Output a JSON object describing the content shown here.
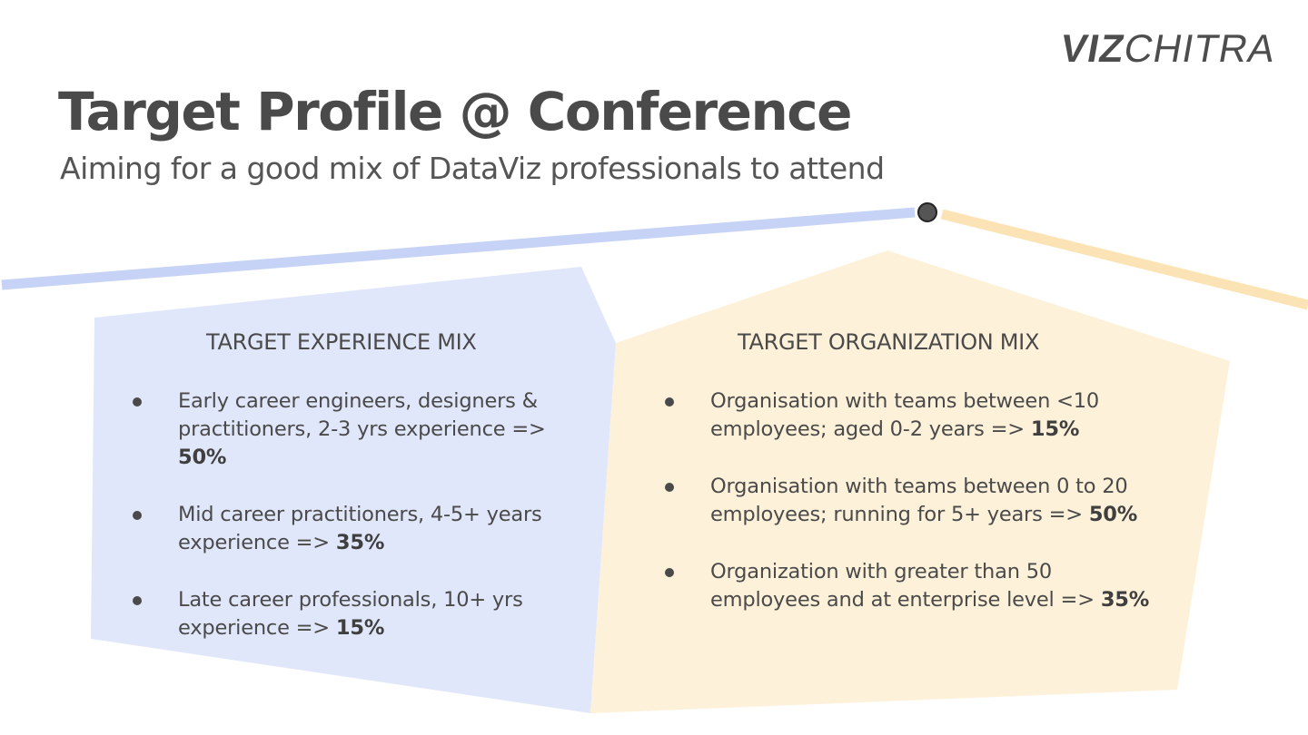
{
  "brand": {
    "logo_bold": "VIZ",
    "logo_rest": "CHITRA"
  },
  "header": {
    "title": "Target Profile @ Conference",
    "subtitle": "Aiming for a good mix of DataViz professionals to attend"
  },
  "colors": {
    "experience_panel": "#e1e7fa",
    "experience_line": "#c7d3f6",
    "organization_panel": "#fdf1d9",
    "organization_line": "#fbe3b6",
    "marker": "#4a4a4a",
    "text": "#4a4a4a"
  },
  "experience": {
    "heading": "TARGET EXPERIENCE MIX",
    "items": [
      {
        "text": "Early career engineers, designers & practitioners, 2-3 yrs experience => ",
        "percent": "50%"
      },
      {
        "text": "Mid career practitioners, 4-5+ years experience => ",
        "percent": "35%"
      },
      {
        "text": "Late career professionals, 10+ yrs experience => ",
        "percent": "15%"
      }
    ]
  },
  "organization": {
    "heading": "TARGET ORGANIZATION MIX",
    "items": [
      {
        "text": "Organisation with teams between <10 employees; aged 0-2 years => ",
        "percent": "15%"
      },
      {
        "text": "Organisation with teams between 0 to 20 employees; running for 5+ years => ",
        "percent": "50%"
      },
      {
        "text": "Organization with greater than 50 employees and at enterprise level => ",
        "percent": "35%"
      }
    ]
  }
}
